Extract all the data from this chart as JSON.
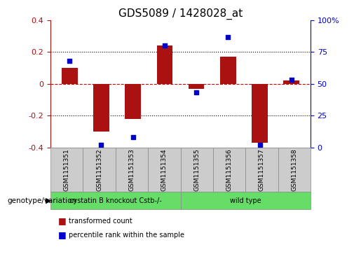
{
  "title": "GDS5089 / 1428028_at",
  "samples": [
    "GSM1151351",
    "GSM1151352",
    "GSM1151353",
    "GSM1151354",
    "GSM1151355",
    "GSM1151356",
    "GSM1151357",
    "GSM1151358"
  ],
  "transformed_count": [
    0.1,
    -0.3,
    -0.22,
    0.24,
    -0.03,
    0.17,
    -0.37,
    0.02
  ],
  "percentile_rank": [
    68,
    2,
    8,
    80,
    43,
    87,
    2,
    53
  ],
  "bar_color": "#aa1111",
  "dot_color": "#0000cc",
  "ylim": [
    -0.4,
    0.4
  ],
  "y2lim": [
    0,
    100
  ],
  "yticks": [
    -0.4,
    -0.2,
    0.0,
    0.2,
    0.4
  ],
  "y2ticks": [
    0,
    25,
    50,
    75,
    100
  ],
  "ytick_labels": [
    "-0.4",
    "-0.2",
    "0",
    "0.2",
    "0.4"
  ],
  "y2tick_labels": [
    "0",
    "25",
    "50",
    "75",
    "100%"
  ],
  "hline_y": 0.0,
  "hline_color": "#cc0000",
  "dotted_lines": [
    -0.2,
    0.2
  ],
  "group1_label": "cystatin B knockout Cstb-/-",
  "group2_label": "wild type",
  "group_color": "#66dd66",
  "sample_box_color": "#cccccc",
  "genotype_label": "genotype/variation",
  "legend_red_label": "transformed count",
  "legend_blue_label": "percentile rank within the sample",
  "background_color": "#ffffff",
  "bar_width": 0.5
}
